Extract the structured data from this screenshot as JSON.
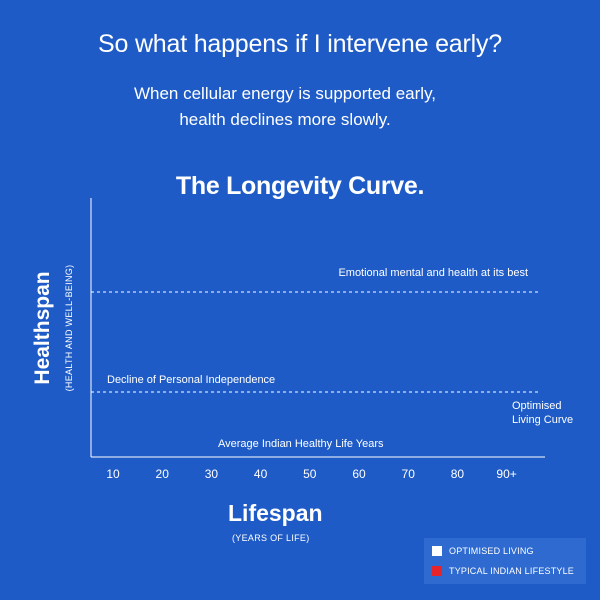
{
  "header": {
    "headline": "So what happens if I intervene early?",
    "subline1": "When cellular energy is supported early,",
    "subline2": "health declines more slowly."
  },
  "chart_data": {
    "type": "line",
    "title": "The Longevity Curve.",
    "xlabel": "Lifespan",
    "xlabel_sub": "(YEARS OF LIFE)",
    "ylabel": "Healthspan",
    "ylabel_sub": "(HEALTH AND WELL-BEING)",
    "x_ticks": [
      "10",
      "20",
      "30",
      "40",
      "50",
      "60",
      "70",
      "80",
      "90+"
    ],
    "reference_lines": [
      {
        "label": "Emotional mental and health at its best",
        "style": "dashed"
      },
      {
        "label": "Decline of Personal Independence",
        "style": "dashed"
      }
    ],
    "annotations": [
      {
        "text_line1": "Optimised",
        "text_line2": "Living Curve"
      },
      {
        "text": "Average Indian Healthy Life Years"
      }
    ],
    "series": [
      {
        "name": "OPTIMISED LIVING",
        "color": "#ffffff"
      },
      {
        "name": "TYPICAL INDIAN LIFESTYLE",
        "color": "#e8242b"
      }
    ],
    "legend_position": "bottom-right",
    "grid": false
  },
  "colors": {
    "background": "#1e5bc6",
    "legend_bg": "#2e6ad0",
    "text": "#ffffff",
    "typical_red": "#e8242b"
  }
}
